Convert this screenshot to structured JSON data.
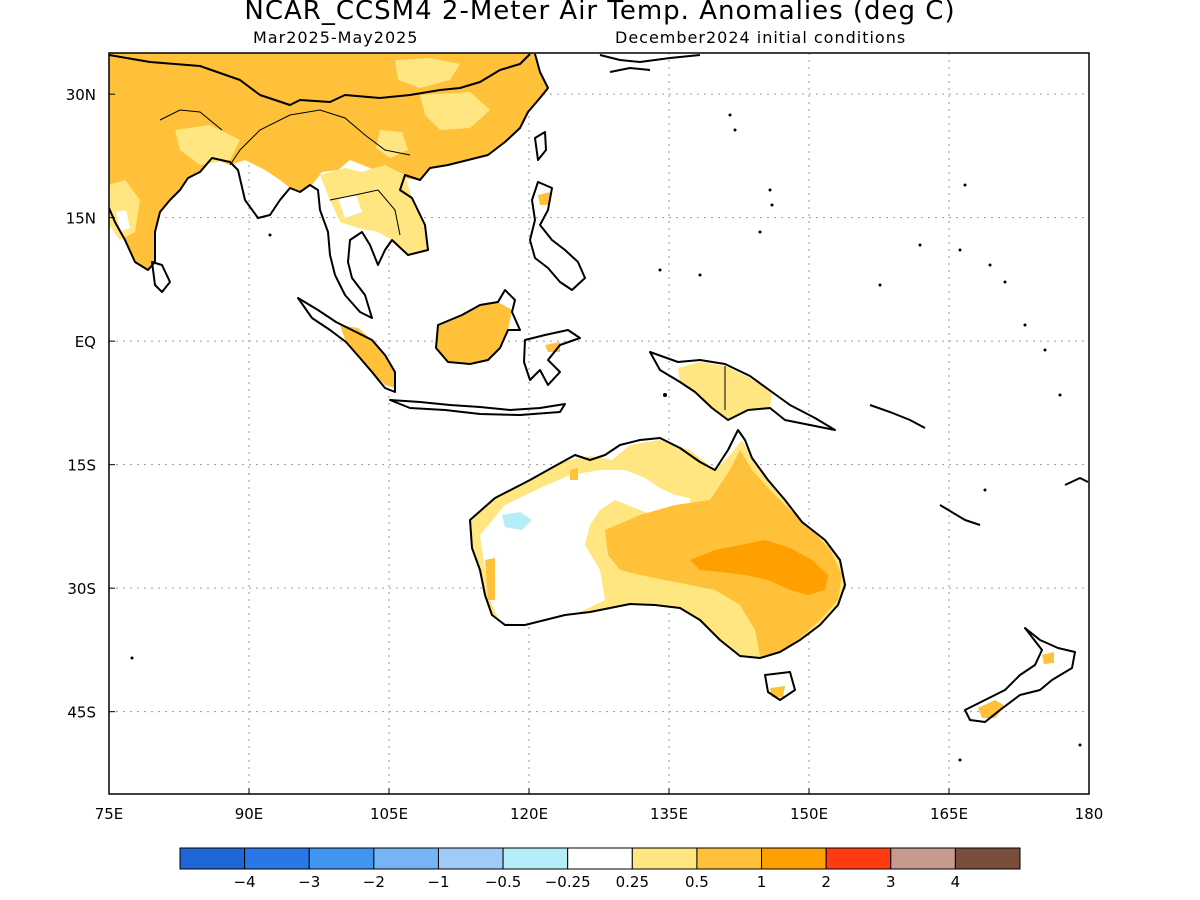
{
  "title": "NCAR_CCSM4 2-Meter Air Temp. Anomalies (deg C)",
  "period": "Mar2025-May2025",
  "init": "December2024 initial conditions",
  "map": {
    "lon_range": [
      75,
      180
    ],
    "lat_range": [
      -55,
      35
    ],
    "lat_ticks": [
      {
        "v": 30,
        "t": "30N"
      },
      {
        "v": 15,
        "t": "15N"
      },
      {
        "v": 0,
        "t": "EQ"
      },
      {
        "v": -15,
        "t": "15S"
      },
      {
        "v": -30,
        "t": "30S"
      },
      {
        "v": -45,
        "t": "45S"
      }
    ],
    "lon_ticks": [
      {
        "v": 75,
        "t": "75E"
      },
      {
        "v": 90,
        "t": "90E"
      },
      {
        "v": 105,
        "t": "105E"
      },
      {
        "v": 120,
        "t": "120E"
      },
      {
        "v": 135,
        "t": "135E"
      },
      {
        "v": 150,
        "t": "150E"
      },
      {
        "v": 165,
        "t": "165E"
      },
      {
        "v": 180,
        "t": "180"
      }
    ]
  },
  "colorbar": {
    "colors": [
      "#1f66d6",
      "#2a77e8",
      "#3f95f0",
      "#76b5f5",
      "#9ecbf7",
      "#b5eef8",
      "#ffffff",
      "#ffe680",
      "#ffc13a",
      "#ffa000",
      "#ff3c10",
      "#c79a8e",
      "#7a4e3c"
    ],
    "labels": [
      "-4",
      "-3",
      "-2",
      "-1",
      "-0.5",
      "-0.25",
      "0.25",
      "0.5",
      "1",
      "2",
      "3",
      "4"
    ]
  },
  "regions": [
    {
      "name": "east-asia",
      "level": "1",
      "color": "#ffc13a"
    },
    {
      "name": "india",
      "level": "1",
      "color": "#ffc13a"
    },
    {
      "name": "australia-core",
      "level": "2",
      "color": "#ffa000"
    },
    {
      "name": "australia-central",
      "level": "1",
      "color": "#ffc13a"
    },
    {
      "name": "wa-anomaly",
      "level": "-0.25",
      "color": "#b5eef8"
    }
  ]
}
